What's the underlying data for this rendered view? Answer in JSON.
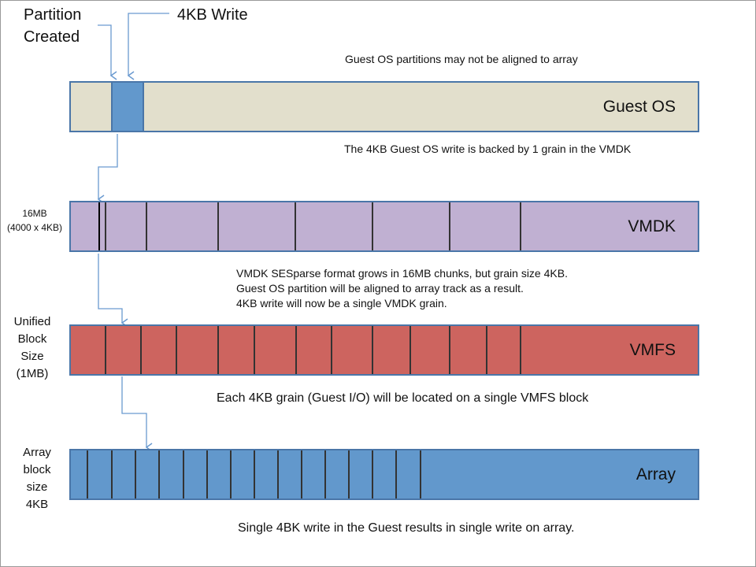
{
  "labels": {
    "partition_created_1": "Partition",
    "partition_created_2": "Created",
    "write_4kb": "4KB Write"
  },
  "notes": {
    "guest_top": "Guest OS partitions may not be aligned to array",
    "guest_bottom": "The 4KB Guest OS write is backed by 1 grain in the VMDK",
    "vmdk_1": "VMDK SESparse format grows in 16MB chunks, but grain size 4KB.",
    "vmdk_2": "Guest OS partition will be aligned to array track as a result.",
    "vmdk_3": "4KB write will now be a single VMDK grain.",
    "vmfs": "Each 4KB grain (Guest I/O) will be located on a single VMFS block",
    "array": "Single 4BK write in the Guest results in single write on array."
  },
  "layers": {
    "guest": {
      "label": "Guest OS",
      "color": "#e2dfcc"
    },
    "vmdk": {
      "label": "VMDK",
      "color": "#c0b0d2",
      "side_1": "16MB",
      "side_2": "(4000 x 4KB)"
    },
    "vmfs": {
      "label": "VMFS",
      "color": "#cd645f",
      "side_1": "Unified",
      "side_2": "Block",
      "side_3": "Size",
      "side_4": "(1MB)"
    },
    "array": {
      "label": "Array",
      "color": "#6298cc",
      "side_1": "Array",
      "side_2": "block",
      "side_3": "size",
      "side_4": "4KB"
    }
  },
  "colors": {
    "arrow": "#6a9ad0",
    "write_block": "#6298cc"
  }
}
